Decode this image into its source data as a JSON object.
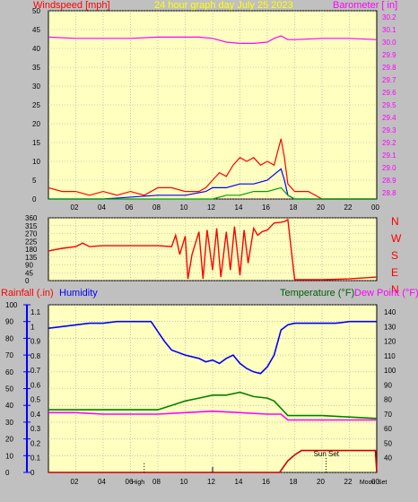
{
  "header": {
    "windspeed_label": "Windspeed [mph]",
    "title": "24 hour graph day   July 25 2023",
    "barometer_label": "Barometer [ in]"
  },
  "mid_panel": {
    "compass_letters": [
      "N",
      "W",
      "S",
      "E",
      "N"
    ]
  },
  "bottom_panel": {
    "rainfall_label": "Rainfall (.in)",
    "humidity_label": "Humidity",
    "temperature_label": "Temperature (°F)",
    "dewpoint_label": "Dew Point (°F)",
    "sunset_label": "Sun Set",
    "x_tick_labels": [
      "02",
      "04",
      "High",
      "06",
      "08",
      "10",
      "12",
      "14",
      "16",
      "18",
      "20",
      "22",
      "Moon",
      "00",
      "Set"
    ]
  },
  "colors": {
    "plot_bg": "#ffffc0",
    "frame_bg": "#c0c0c0",
    "windspeed": "#ff0000",
    "gust_blue": "#0000ff",
    "wind_green": "#00a000",
    "barometer": "#ff00ff",
    "direction": "#ff0000",
    "humidity": "#0000ff",
    "temperature": "#008000",
    "dewpoint": "#ff00ff",
    "rainfall": "#cc0000",
    "title": "#ffff00"
  },
  "chart_data": [
    {
      "type": "line",
      "title": "24 hour graph day   July 25 2023",
      "xlabel": "",
      "x_ticks": [
        "02",
        "04",
        "06",
        "08",
        "10",
        "12",
        "14",
        "16",
        "18",
        "20",
        "22",
        "00"
      ],
      "y_left_label": "Windspeed [mph]",
      "y_left_ticks": [
        0,
        5,
        10,
        15,
        20,
        25,
        30,
        35,
        40,
        45,
        50
      ],
      "y_left_lim": [
        0,
        50
      ],
      "y_right_label": "Barometer [ in]",
      "y_right_ticks": [
        28.8,
        28.9,
        29.0,
        29.1,
        29.2,
        29.3,
        29.4,
        29.5,
        29.6,
        29.7,
        29.8,
        29.9,
        30.0,
        30.1,
        30.2
      ],
      "y_right_lim": [
        28.75,
        30.25
      ],
      "grid": true,
      "series": [
        {
          "name": "Windspeed",
          "axis": "left",
          "hours": [
            0,
            1,
            2,
            3,
            4,
            5,
            6,
            7,
            8,
            9,
            10,
            11,
            11.5,
            12,
            12.5,
            13,
            13.5,
            14,
            14.5,
            15,
            15.5,
            16,
            16.5,
            17,
            17.25,
            17.5,
            18,
            19,
            20,
            21,
            22,
            23,
            24
          ],
          "values": [
            3,
            2,
            2,
            1,
            2,
            1,
            2,
            1,
            3,
            3,
            2,
            2,
            3,
            5,
            7,
            6,
            9,
            11,
            10,
            11,
            9,
            10,
            9,
            16,
            11,
            4,
            2,
            2,
            0,
            0,
            0,
            0,
            0
          ]
        },
        {
          "name": "Gust",
          "axis": "left",
          "hours": [
            0,
            4,
            8,
            10,
            11.5,
            12,
            13,
            14,
            15,
            16,
            17,
            17.25,
            17.5,
            18,
            24
          ],
          "values": [
            0,
            0,
            1,
            1,
            2,
            3,
            3,
            4,
            4,
            5,
            8,
            5,
            1,
            0,
            0
          ]
        },
        {
          "name": "Wind",
          "axis": "left",
          "hours": [
            0,
            12,
            13,
            14,
            15,
            16,
            17,
            17.5,
            18,
            24
          ],
          "values": [
            0,
            0,
            1,
            1,
            2,
            2,
            3,
            1,
            0,
            0
          ]
        },
        {
          "name": "Barometer",
          "axis": "right",
          "hours": [
            0,
            2,
            4,
            6,
            8,
            10,
            11,
            12,
            13,
            14,
            15,
            16,
            16.5,
            17,
            17.5,
            18,
            20,
            22,
            24
          ],
          "values": [
            30.04,
            30.03,
            30.03,
            30.03,
            30.04,
            30.04,
            30.04,
            30.03,
            30.0,
            29.99,
            29.99,
            30.0,
            30.03,
            30.05,
            30.02,
            30.02,
            30.03,
            30.03,
            30.02
          ]
        }
      ]
    },
    {
      "type": "line",
      "title": "",
      "x_ticks": [
        "02",
        "04",
        "06",
        "08",
        "10",
        "12",
        "14",
        "16",
        "18",
        "20",
        "22",
        "00"
      ],
      "y_left_ticks": [
        0,
        45,
        90,
        135,
        180,
        225,
        270,
        315,
        360
      ],
      "y_left_lim": [
        0,
        360
      ],
      "y_right_labels": [
        "N",
        "W",
        "S",
        "E",
        "N"
      ],
      "grid": true,
      "series": [
        {
          "name": "Wind Direction",
          "hours": [
            0,
            1,
            2,
            2.5,
            3,
            4,
            5,
            6,
            7,
            8,
            9,
            9.3,
            9.6,
            10,
            10.2,
            10.5,
            11,
            11.3,
            11.6,
            12,
            12.3,
            12.6,
            13,
            13.3,
            13.6,
            14,
            14.3,
            14.6,
            15,
            15.3,
            15.6,
            16,
            16.5,
            17,
            17.3,
            17.5,
            18,
            20,
            22,
            24
          ],
          "values": [
            170,
            185,
            195,
            215,
            195,
            200,
            200,
            200,
            200,
            200,
            195,
            260,
            150,
            255,
            10,
            150,
            280,
            10,
            290,
            60,
            300,
            20,
            280,
            60,
            310,
            30,
            290,
            100,
            300,
            260,
            280,
            290,
            330,
            335,
            340,
            350,
            5,
            5,
            10,
            20
          ]
        }
      ]
    },
    {
      "type": "line",
      "title": "",
      "x_ticks": [
        "02",
        "04",
        "06",
        "08",
        "10",
        "12",
        "14",
        "16",
        "18",
        "20",
        "22",
        "00"
      ],
      "y_left_label": "Rainfall (.in)",
      "y_left_ticks": [
        0,
        0.1,
        0.2,
        0.3,
        0.4,
        0.5,
        0.6,
        0.7,
        0.8,
        0.9,
        1.0,
        1.1
      ],
      "y_left_lim": [
        0,
        1.15
      ],
      "y_humidity_label": "Humidity",
      "y_humidity_ticks": [
        0,
        10,
        20,
        30,
        40,
        50,
        60,
        70,
        80,
        90,
        100
      ],
      "y_humidity_lim": [
        0,
        100
      ],
      "y_right_label": "Temperature (°F)",
      "y_right_ticks": [
        40,
        50,
        60,
        70,
        80,
        90,
        100,
        110,
        120,
        130,
        140
      ],
      "y_right_lim": [
        30,
        145
      ],
      "grid": true,
      "annotations": [
        "High",
        "Sun Set",
        "Moon",
        "Set"
      ],
      "series": [
        {
          "name": "Humidity",
          "axis": "humidity",
          "hours": [
            0,
            1,
            2,
            3,
            4,
            5,
            6,
            7,
            7.5,
            8,
            8.5,
            9,
            10,
            11,
            11.5,
            12,
            12.5,
            13,
            13.5,
            14,
            14.5,
            15,
            15.5,
            16,
            16.5,
            17,
            17.5,
            18,
            19,
            20,
            21,
            22,
            23,
            24
          ],
          "values": [
            86,
            87,
            88,
            89,
            89,
            90,
            90,
            90,
            90,
            84,
            78,
            73,
            70,
            68,
            66,
            67,
            65,
            68,
            70,
            65,
            62,
            60,
            59,
            63,
            70,
            85,
            88,
            89,
            89,
            89,
            89,
            90,
            90,
            90
          ]
        },
        {
          "name": "Temperature",
          "axis": "right",
          "hours": [
            0,
            2,
            4,
            6,
            8,
            9,
            10,
            11,
            12,
            13,
            14,
            15,
            16,
            16.5,
            17,
            17.5,
            18,
            20,
            22,
            24
          ],
          "values": [
            73,
            73,
            73,
            73,
            73,
            76,
            79,
            81,
            83,
            83,
            85,
            82,
            81,
            79,
            74,
            69,
            69,
            69,
            68,
            67
          ]
        },
        {
          "name": "Dew Point",
          "axis": "right",
          "hours": [
            0,
            2,
            4,
            6,
            8,
            10,
            12,
            14,
            16,
            17,
            17.5,
            18,
            20,
            22,
            24
          ],
          "values": [
            71,
            71,
            70,
            70,
            70,
            71,
            72,
            71,
            70,
            70,
            66,
            66,
            66,
            66,
            66
          ]
        },
        {
          "name": "Rainfall",
          "axis": "left",
          "hours": [
            0,
            16.9,
            17.2,
            17.5,
            18,
            18.5,
            19,
            20,
            21,
            22,
            23,
            23.9,
            24
          ],
          "values": [
            0,
            0,
            0.04,
            0.08,
            0.12,
            0.15,
            0.15,
            0.15,
            0.15,
            0.15,
            0.15,
            0.15,
            0.0
          ]
        }
      ]
    }
  ]
}
